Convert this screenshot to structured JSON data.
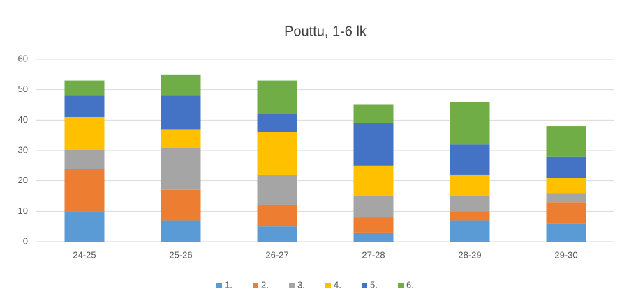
{
  "chart_data": {
    "type": "stacked_bar",
    "title": "Pouttu, 1-6 lk",
    "categories": [
      "24-25",
      "25-26",
      "26-27",
      "27-28",
      "28-29",
      "29-30"
    ],
    "series": [
      {
        "name": "1.",
        "color": "#5b9bd5",
        "values": [
          10,
          7,
          5,
          3,
          7,
          6
        ]
      },
      {
        "name": "2.",
        "color": "#ed7d31",
        "values": [
          14,
          10,
          7,
          5,
          3,
          7
        ]
      },
      {
        "name": "3.",
        "color": "#a5a5a5",
        "values": [
          6,
          14,
          10,
          7,
          5,
          3
        ]
      },
      {
        "name": "4.",
        "color": "#ffc000",
        "values": [
          11,
          6,
          14,
          10,
          7,
          5
        ]
      },
      {
        "name": "5.",
        "color": "#4472c4",
        "values": [
          7,
          11,
          6,
          14,
          10,
          7
        ]
      },
      {
        "name": "6.",
        "color": "#70ad47",
        "values": [
          5,
          7,
          11,
          6,
          14,
          10
        ]
      }
    ],
    "ylim": [
      0,
      60
    ],
    "yticks": [
      0,
      10,
      20,
      30,
      40,
      50,
      60
    ],
    "grid": true,
    "legend": "bottom"
  }
}
